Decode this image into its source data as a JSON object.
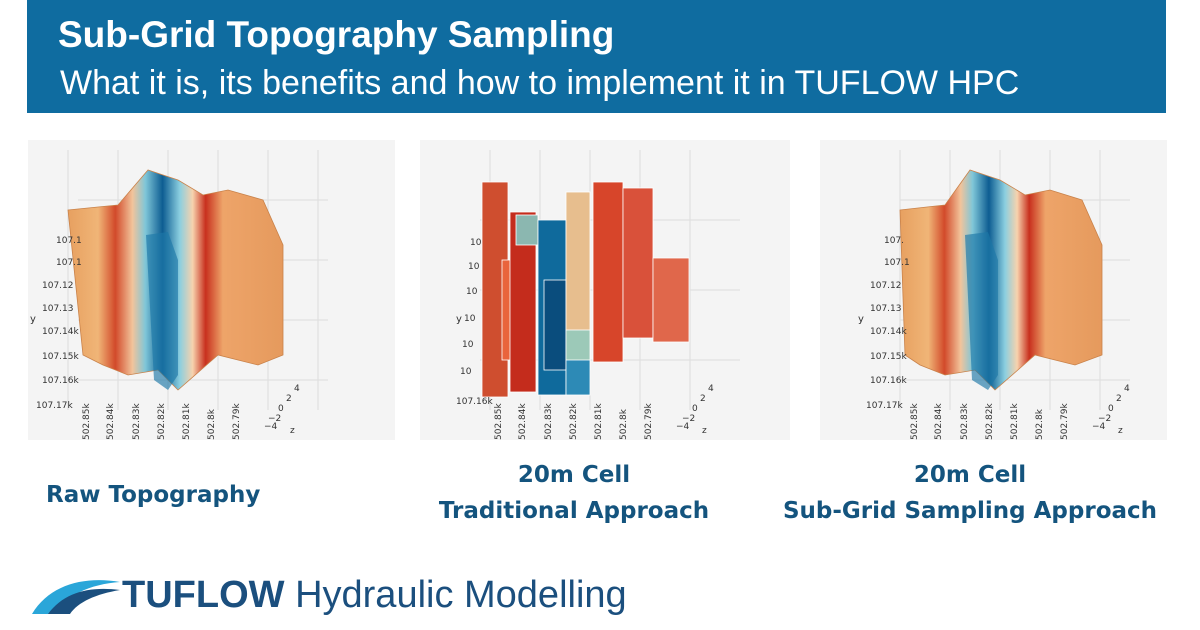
{
  "header": {
    "title": "Sub-Grid Topography Sampling",
    "subtitle": "What it is, its benefits and how to implement it in TUFLOW HPC",
    "background_color": "#0f6ca0"
  },
  "panels": [
    {
      "caption_line1": "Raw Topography",
      "caption_line2": "",
      "y_axis_label": "y",
      "y_ticks": [
        "107.1",
        "107.1",
        "107.12",
        "107.13",
        "107.14k",
        "107.15k",
        "107.16k",
        "107.17k"
      ],
      "x_ticks": [
        "502.85k",
        "502.84k",
        "502.83k",
        "502.82k",
        "502.81k",
        "502.8k",
        "502.79k"
      ],
      "z_axis_label": "z",
      "z_ticks": [
        "4",
        "2",
        "0",
        "−2",
        "−4"
      ]
    },
    {
      "caption_line1": "20m Cell",
      "caption_line2": "Traditional Approach",
      "y_axis_label": "y",
      "y_ticks": [
        "10",
        "10",
        "10",
        "10",
        "10",
        "10",
        "107.16k"
      ],
      "x_ticks": [
        "502.85k",
        "502.84k",
        "502.83k",
        "502.82k",
        "502.81k",
        "502.8k",
        "502.79k"
      ],
      "z_axis_label": "z",
      "z_ticks": [
        "4",
        "2",
        "0",
        "−2",
        "−4"
      ]
    },
    {
      "caption_line1": "20m Cell",
      "caption_line2": "Sub-Grid Sampling Approach",
      "y_axis_label": "y",
      "y_ticks": [
        "107.",
        "107.1",
        "107.12",
        "107.13",
        "107.14k",
        "107.15k",
        "107.16k",
        "107.17k"
      ],
      "x_ticks": [
        "502.85k",
        "502.84k",
        "502.83k",
        "502.82k",
        "502.81k",
        "502.8k",
        "502.79k"
      ],
      "z_axis_label": "z",
      "z_ticks": [
        "4",
        "2",
        "0",
        "−2",
        "−4"
      ]
    }
  ],
  "footer": {
    "logo_bold": "TUFLOW",
    "logo_rest": " Hydraulic Modelling",
    "logo_color": "#1b4f7e",
    "accent_color": "#2aa6d9"
  }
}
